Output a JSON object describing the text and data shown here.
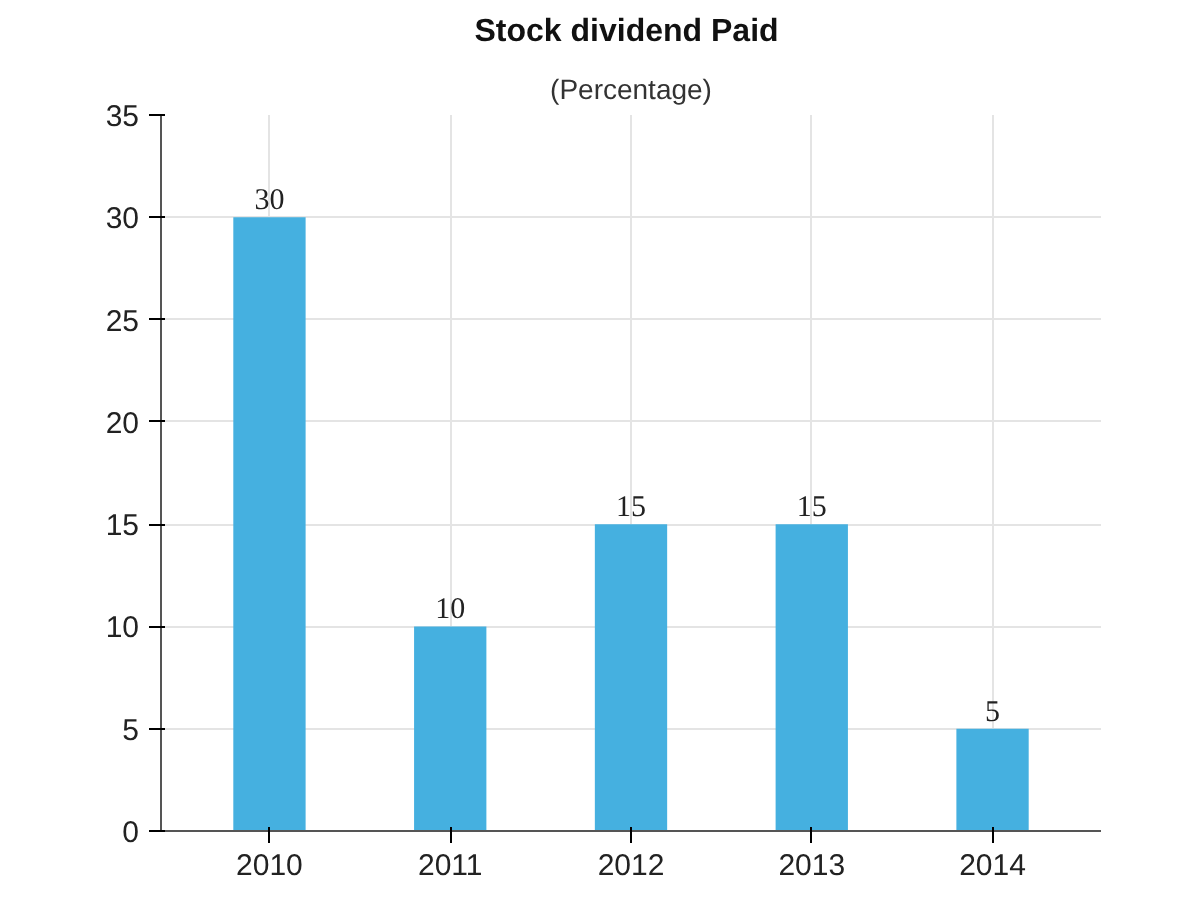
{
  "chart_data": {
    "type": "bar",
    "title": "Stock dividend  Paid",
    "subtitle": "(Percentage)",
    "categories": [
      "2010",
      "2011",
      "2012",
      "2013",
      "2014"
    ],
    "values": [
      30,
      10,
      15,
      15,
      5
    ],
    "color": "#45b0e0",
    "ylim": [
      0,
      35
    ],
    "yticks": [
      0,
      5,
      10,
      15,
      20,
      25,
      30,
      35
    ],
    "grid": true,
    "data_labels": true
  }
}
